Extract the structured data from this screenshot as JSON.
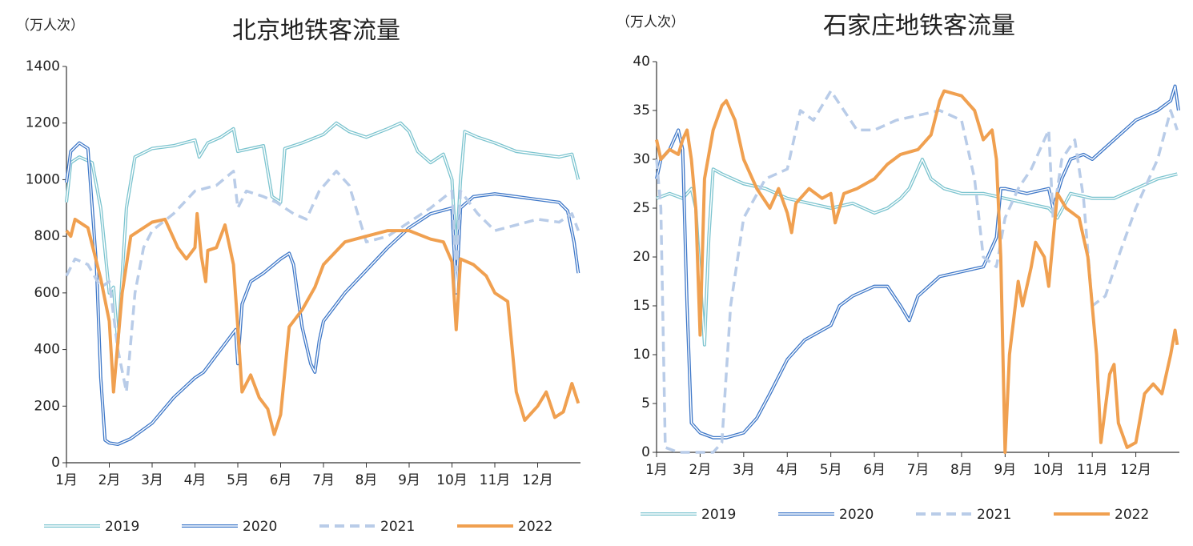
{
  "chart_data": [
    {
      "type": "line",
      "title": "北京地铁客流量",
      "y_label": "（万人次）",
      "xlim": [
        1,
        13
      ],
      "xticks": [
        {
          "value": 1,
          "label": "1月"
        },
        {
          "value": 2,
          "label": "2月"
        },
        {
          "value": 3,
          "label": "3月"
        },
        {
          "value": 4,
          "label": "4月"
        },
        {
          "value": 5,
          "label": "5月"
        },
        {
          "value": 6,
          "label": "6月"
        },
        {
          "value": 7,
          "label": "7月"
        },
        {
          "value": 8,
          "label": "8月"
        },
        {
          "value": 9,
          "label": "9月"
        },
        {
          "value": 10,
          "label": "10月"
        },
        {
          "value": 11,
          "label": "11月"
        },
        {
          "value": 12,
          "label": "12月"
        }
      ],
      "ylim": [
        0,
        1400
      ],
      "yticks": [
        0,
        200,
        400,
        600,
        800,
        1000,
        1200,
        1400
      ],
      "series": [
        {
          "name": "2019",
          "color": "#7cc4cf",
          "line_style": "double",
          "x": [
            1.0,
            1.1,
            1.3,
            1.6,
            1.8,
            2.0,
            2.1,
            2.2,
            2.4,
            2.6,
            3.0,
            3.5,
            4.0,
            4.1,
            4.3,
            4.6,
            4.9,
            5.0,
            5.3,
            5.6,
            5.8,
            6.0,
            6.1,
            6.5,
            7.0,
            7.3,
            7.6,
            8.0,
            8.5,
            8.8,
            9.0,
            9.2,
            9.5,
            9.8,
            10.0,
            10.1,
            10.2,
            10.3,
            10.6,
            11.0,
            11.5,
            12.0,
            12.5,
            12.8,
            12.95
          ],
          "values": [
            920,
            1060,
            1080,
            1060,
            900,
            600,
            620,
            420,
            900,
            1080,
            1110,
            1120,
            1140,
            1080,
            1130,
            1150,
            1180,
            1100,
            1110,
            1120,
            940,
            920,
            1110,
            1130,
            1160,
            1200,
            1170,
            1150,
            1180,
            1200,
            1170,
            1100,
            1060,
            1090,
            1000,
            740,
            1000,
            1170,
            1150,
            1130,
            1100,
            1090,
            1080,
            1090,
            1000
          ]
        },
        {
          "name": "2020",
          "color": "#3f78c8",
          "line_style": "double",
          "x": [
            1.0,
            1.1,
            1.3,
            1.5,
            1.7,
            1.8,
            1.9,
            2.0,
            2.2,
            2.5,
            3.0,
            3.5,
            4.0,
            4.2,
            4.5,
            4.8,
            4.95,
            5.0,
            5.1,
            5.3,
            5.6,
            6.0,
            6.2,
            6.3,
            6.5,
            6.7,
            6.8,
            6.9,
            7.0,
            7.5,
            8.0,
            8.5,
            9.0,
            9.5,
            10.0,
            10.1,
            10.2,
            10.5,
            11.0,
            11.5,
            12.0,
            12.5,
            12.7,
            12.85,
            12.95
          ],
          "values": [
            990,
            1100,
            1130,
            1110,
            700,
            300,
            80,
            70,
            65,
            85,
            140,
            230,
            300,
            320,
            380,
            440,
            470,
            350,
            560,
            640,
            670,
            720,
            740,
            700,
            480,
            350,
            320,
            430,
            500,
            600,
            680,
            760,
            830,
            880,
            900,
            600,
            900,
            940,
            950,
            940,
            930,
            920,
            890,
            780,
            670
          ]
        },
        {
          "name": "2021",
          "color": "#b9cce8",
          "line_style": "dashed",
          "x": [
            1.0,
            1.2,
            1.5,
            1.8,
            2.0,
            2.2,
            2.4,
            2.6,
            2.8,
            3.0,
            3.5,
            4.0,
            4.5,
            4.9,
            5.0,
            5.2,
            5.6,
            5.9,
            6.3,
            6.6,
            6.9,
            7.3,
            7.6,
            8.0,
            8.5,
            9.0,
            9.5,
            10.0,
            10.1,
            10.2,
            10.6,
            11.0,
            11.5,
            12.0,
            12.5,
            12.8,
            12.95
          ],
          "values": [
            660,
            720,
            700,
            620,
            640,
            400,
            250,
            600,
            760,
            820,
            880,
            960,
            980,
            1030,
            900,
            960,
            940,
            920,
            880,
            860,
            960,
            1030,
            980,
            780,
            800,
            850,
            900,
            960,
            680,
            960,
            880,
            820,
            840,
            860,
            850,
            880,
            820
          ]
        },
        {
          "name": "2022",
          "color": "#f0a050",
          "line_style": "solid",
          "x": [
            1.0,
            1.1,
            1.2,
            1.5,
            1.8,
            2.0,
            2.1,
            2.3,
            2.5,
            3.0,
            3.3,
            3.6,
            3.8,
            4.0,
            4.05,
            4.15,
            4.25,
            4.3,
            4.5,
            4.7,
            4.9,
            5.0,
            5.1,
            5.3,
            5.5,
            5.7,
            5.85,
            6.0,
            6.2,
            6.5,
            6.8,
            7.0,
            7.5,
            8.0,
            8.5,
            9.0,
            9.5,
            9.8,
            10.0,
            10.1,
            10.2,
            10.5,
            10.8,
            11.0,
            11.3,
            11.5,
            11.7,
            12.0,
            12.2,
            12.4,
            12.6,
            12.8,
            12.95
          ],
          "values": [
            820,
            800,
            860,
            830,
            650,
            500,
            250,
            600,
            800,
            850,
            860,
            760,
            720,
            760,
            880,
            730,
            640,
            750,
            760,
            840,
            700,
            480,
            250,
            310,
            230,
            190,
            100,
            170,
            480,
            540,
            620,
            700,
            780,
            800,
            820,
            820,
            790,
            780,
            710,
            470,
            720,
            700,
            660,
            600,
            570,
            250,
            150,
            200,
            250,
            160,
            180,
            280,
            210
          ]
        }
      ]
    },
    {
      "type": "line",
      "title": "石家庄地铁客流量",
      "y_label": "（万人次）",
      "xlim": [
        1,
        13
      ],
      "xticks": [
        {
          "value": 1,
          "label": "1月"
        },
        {
          "value": 2,
          "label": "2月"
        },
        {
          "value": 3,
          "label": "3月"
        },
        {
          "value": 4,
          "label": "4月"
        },
        {
          "value": 5,
          "label": "5月"
        },
        {
          "value": 6,
          "label": "6月"
        },
        {
          "value": 7,
          "label": "7月"
        },
        {
          "value": 8,
          "label": "8月"
        },
        {
          "value": 9,
          "label": "9月"
        },
        {
          "value": 10,
          "label": "10月"
        },
        {
          "value": 11,
          "label": "11月"
        },
        {
          "value": 12,
          "label": "12月"
        }
      ],
      "ylim": [
        0,
        40
      ],
      "yticks": [
        0,
        5,
        10,
        15,
        20,
        25,
        30,
        35,
        40
      ],
      "series": [
        {
          "name": "2019",
          "color": "#7cc4cf",
          "line_style": "double",
          "x": [
            1.0,
            1.3,
            1.6,
            1.8,
            1.9,
            2.0,
            2.1,
            2.2,
            2.3,
            2.5,
            3.0,
            3.5,
            4.0,
            4.5,
            5.0,
            5.5,
            6.0,
            6.3,
            6.6,
            6.8,
            7.0,
            7.1,
            7.3,
            7.6,
            8.0,
            8.5,
            9.0,
            9.5,
            10.0,
            10.2,
            10.5,
            11.0,
            11.5,
            12.0,
            12.5,
            12.95
          ],
          "values": [
            26,
            26.5,
            26,
            27,
            25,
            18,
            11,
            22,
            29,
            28.5,
            27.5,
            27,
            26,
            25.5,
            25,
            25.5,
            24.5,
            25,
            26,
            27,
            29,
            30,
            28,
            27,
            26.5,
            26.5,
            26,
            25.5,
            25,
            24,
            26.5,
            26,
            26,
            27,
            28,
            28.5
          ]
        },
        {
          "name": "2020",
          "color": "#3f78c8",
          "line_style": "double",
          "x": [
            1.0,
            1.1,
            1.3,
            1.5,
            1.6,
            1.7,
            1.8,
            2.0,
            2.3,
            2.6,
            3.0,
            3.3,
            3.6,
            4.0,
            4.4,
            4.8,
            5.0,
            5.2,
            5.5,
            6.0,
            6.3,
            6.6,
            6.8,
            7.0,
            7.5,
            8.0,
            8.5,
            8.8,
            8.9,
            9.0,
            9.5,
            10.0,
            10.1,
            10.3,
            10.5,
            10.8,
            11.0,
            11.5,
            12.0,
            12.5,
            12.8,
            12.9,
            12.98
          ],
          "values": [
            28,
            30,
            31,
            33,
            31,
            15,
            3,
            2,
            1.5,
            1.5,
            2,
            3.5,
            6,
            9.5,
            11.5,
            12.5,
            13,
            15,
            16,
            17,
            17,
            15,
            13.5,
            16,
            18,
            18.5,
            19,
            22,
            27,
            27,
            26.5,
            27,
            25,
            28,
            30,
            30.5,
            30,
            32,
            34,
            35,
            36,
            37.5,
            35
          ]
        },
        {
          "name": "2021",
          "color": "#b9cce8",
          "line_style": "dashed",
          "x": [
            1.0,
            1.1,
            1.2,
            1.5,
            2.0,
            2.3,
            2.5,
            2.7,
            3.0,
            3.5,
            4.0,
            4.3,
            4.6,
            5.0,
            5.3,
            5.6,
            6.0,
            6.5,
            7.0,
            7.5,
            8.0,
            8.3,
            8.5,
            8.8,
            9.0,
            9.3,
            9.6,
            10.0,
            10.1,
            10.3,
            10.6,
            10.8,
            11.0,
            11.3,
            11.6,
            12.0,
            12.5,
            12.8,
            12.95
          ],
          "values": [
            30,
            25,
            0.5,
            0,
            0,
            0,
            1,
            15,
            24,
            28,
            29,
            35,
            34,
            37,
            35,
            33,
            33,
            34,
            34.5,
            35,
            34,
            28,
            20,
            19,
            24,
            27,
            29,
            33,
            24,
            30,
            32,
            26,
            15,
            16,
            20,
            25,
            30,
            35,
            33
          ]
        },
        {
          "name": "2022",
          "color": "#f0a050",
          "line_style": "solid",
          "x": [
            1.0,
            1.1,
            1.3,
            1.5,
            1.6,
            1.7,
            1.8,
            1.9,
            2.0,
            2.1,
            2.3,
            2.5,
            2.6,
            2.8,
            3.0,
            3.3,
            3.6,
            3.8,
            4.0,
            4.1,
            4.2,
            4.5,
            4.8,
            5.0,
            5.1,
            5.3,
            5.6,
            6.0,
            6.3,
            6.6,
            7.0,
            7.3,
            7.5,
            7.6,
            8.0,
            8.3,
            8.5,
            8.7,
            8.8,
            8.9,
            9.0,
            9.1,
            9.3,
            9.4,
            9.6,
            9.7,
            9.9,
            10.0,
            10.2,
            10.4,
            10.7,
            10.9,
            11.1,
            11.2,
            11.4,
            11.5,
            11.6,
            11.8,
            12.0,
            12.2,
            12.4,
            12.6,
            12.8,
            12.9,
            12.95
          ],
          "values": [
            32,
            30,
            31,
            30.5,
            32,
            33,
            30,
            25,
            12,
            28,
            33,
            35.5,
            36,
            34,
            30,
            27,
            25,
            27,
            24.5,
            22.5,
            25.5,
            27,
            26,
            26.5,
            23.5,
            26.5,
            27,
            28,
            29.5,
            30.5,
            31,
            32.5,
            36,
            37,
            36.5,
            35,
            32,
            33,
            30,
            20,
            0,
            10,
            17.5,
            15,
            19,
            21.5,
            20,
            17,
            26.5,
            25,
            24,
            20,
            10,
            1,
            8,
            9,
            3,
            0.5,
            1,
            6,
            7,
            6,
            10,
            12.5,
            11
          ]
        }
      ]
    }
  ]
}
